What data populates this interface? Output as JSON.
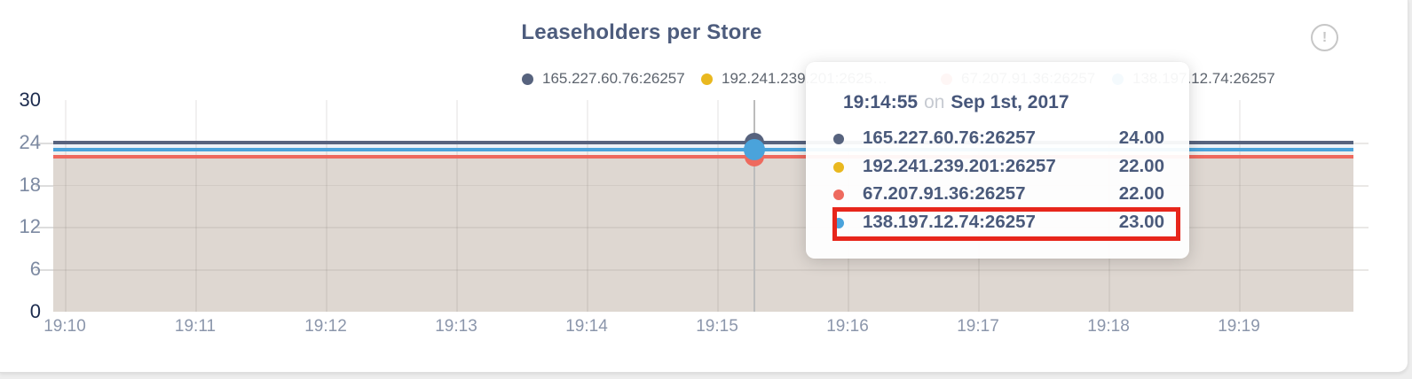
{
  "page": {
    "background_color": "#ededed",
    "card_color": "#ffffff",
    "info_icon_glyph": "!"
  },
  "chart_data": {
    "type": "area",
    "title": "Leaseholders per Store",
    "title_color": "#4d5c7d",
    "x_ticks": [
      "19:10",
      "19:11",
      "19:12",
      "19:13",
      "19:14",
      "19:15",
      "19:16",
      "19:17",
      "19:18",
      "19:19"
    ],
    "y_ticks": [
      "0",
      "6",
      "12",
      "18",
      "24",
      "30"
    ],
    "y_ticks_emphasized": [
      "0",
      "30"
    ],
    "ylim": [
      0,
      30
    ],
    "grid": true,
    "legend_position": "top",
    "series": [
      {
        "name": "165.227.60.76:26257",
        "legend_label": "165.227.60.76:26257",
        "color": "#57637e",
        "value": 24
      },
      {
        "name": "192.241.239.201:26257",
        "legend_label": "192.241.239.201:2625…",
        "color": "#e9b81f",
        "value": 22
      },
      {
        "name": "67.207.91.36:26257",
        "legend_label": "67.207.91.36:26257",
        "color": "#ee6a5e",
        "value": 22
      },
      {
        "name": "138.197.12.74:26257",
        "legend_label": "138.197.12.74:26257",
        "color": "#4aa3db",
        "value": 23
      }
    ],
    "colors": {
      "area_fill": "#ded7d1",
      "band_between_24_23": "#eef2f7",
      "band_between_23_22": "#f2f0ed",
      "gridline": "rgba(80,70,60,0.08)",
      "tick": "#dddddd",
      "crosshair": "#bcbcbc",
      "axis_label": "#7d8aa2",
      "axis_label_emphasized": "#1c2b4e"
    },
    "hover": {
      "time": "19:14:55",
      "on_word": "on",
      "date": "Sep 1st, 2017",
      "rows": [
        {
          "name": "165.227.60.76:26257",
          "color": "#57637e",
          "value": "24.00",
          "highlighted": false
        },
        {
          "name": "192.241.239.201:26257",
          "color": "#e9b81f",
          "value": "22.00",
          "highlighted": false
        },
        {
          "name": "67.207.91.36:26257",
          "color": "#ee6a5e",
          "value": "22.00",
          "highlighted": false
        },
        {
          "name": "138.197.12.74:26257",
          "color": "#4aa3db",
          "value": "23.00",
          "highlighted": true
        }
      ],
      "annotation_color": "#e7261b"
    }
  }
}
